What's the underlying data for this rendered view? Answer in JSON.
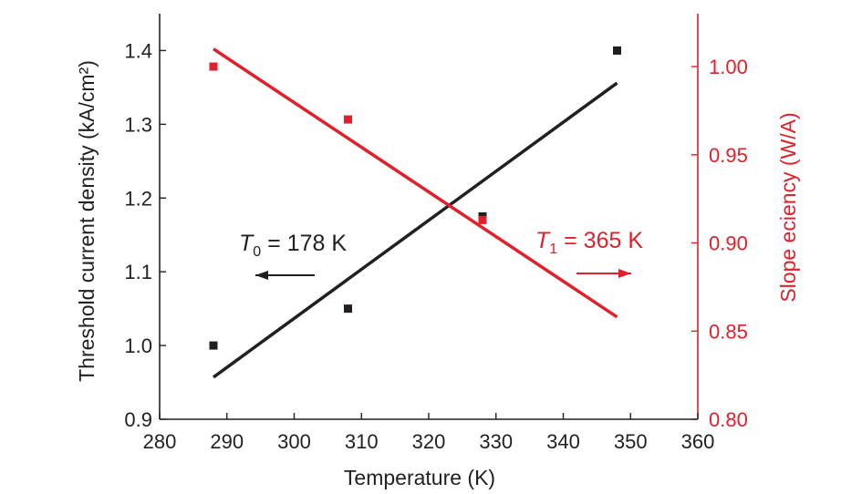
{
  "chart_data": {
    "type": "scatter",
    "x_axis": {
      "label": "Temperature (K)",
      "range": [
        280,
        360
      ],
      "ticks": [
        "280",
        "290",
        "300",
        "310",
        "320",
        "330",
        "340",
        "350",
        "360"
      ],
      "tick_values": [
        280,
        290,
        300,
        310,
        320,
        330,
        340,
        350,
        360
      ]
    },
    "y_axis_left": {
      "label": "Threshold current density (kA/cm²)",
      "range": [
        0.9,
        1.45
      ],
      "ticks": [
        "0.9",
        "1.0",
        "1.1",
        "1.2",
        "1.3",
        "1.4"
      ],
      "tick_values": [
        0.9,
        1.0,
        1.1,
        1.2,
        1.3,
        1.4
      ],
      "color": "#231f20"
    },
    "y_axis_right": {
      "label": "Slope eciency (W/A)",
      "range": [
        0.8,
        1.03
      ],
      "ticks": [
        "0.80",
        "0.85",
        "0.90",
        "0.95",
        "1.00"
      ],
      "tick_values": [
        0.8,
        0.85,
        0.9,
        0.95,
        1.0
      ],
      "color": "#e0202a"
    },
    "series": [
      {
        "axis": "left",
        "color": "#231f20",
        "points": {
          "x": [
            288,
            308,
            328,
            348
          ],
          "y": [
            1.0,
            1.05,
            1.175,
            1.4
          ]
        },
        "fit": {
          "x": [
            288,
            348
          ],
          "y": [
            0.957,
            1.356
          ]
        }
      },
      {
        "axis": "right",
        "color": "#e0202a",
        "points": {
          "x": [
            288,
            308,
            328
          ],
          "y": [
            1.0,
            0.97,
            0.913
          ]
        },
        "fit": {
          "x": [
            288,
            348
          ],
          "y": [
            1.01,
            0.858
          ]
        }
      }
    ],
    "annotations": [
      {
        "text_main": "T",
        "subscript": "0",
        "rest": " = 178 K",
        "color": "#231f20",
        "arrow": "left"
      },
      {
        "text_main": "T",
        "subscript": "1",
        "rest": " = 365 K",
        "color": "#e0202a",
        "arrow": "right"
      }
    ]
  }
}
